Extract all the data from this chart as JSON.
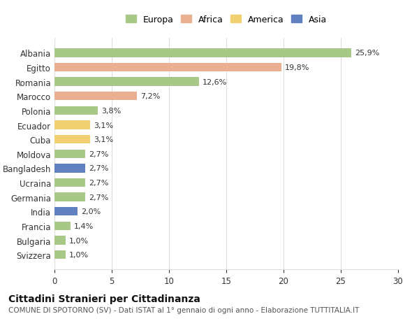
{
  "countries": [
    "Albania",
    "Egitto",
    "Romania",
    "Marocco",
    "Polonia",
    "Ecuador",
    "Cuba",
    "Moldova",
    "Bangladesh",
    "Ucraina",
    "Germania",
    "India",
    "Francia",
    "Bulgaria",
    "Svizzera"
  ],
  "values": [
    25.9,
    19.8,
    12.6,
    7.2,
    3.8,
    3.1,
    3.1,
    2.7,
    2.7,
    2.7,
    2.7,
    2.0,
    1.4,
    1.0,
    1.0
  ],
  "labels": [
    "25,9%",
    "19,8%",
    "12,6%",
    "7,2%",
    "3,8%",
    "3,1%",
    "3,1%",
    "2,7%",
    "2,7%",
    "2,7%",
    "2,7%",
    "2,0%",
    "1,4%",
    "1,0%",
    "1,0%"
  ],
  "continents": [
    "Europa",
    "Africa",
    "Europa",
    "Africa",
    "Europa",
    "America",
    "America",
    "Europa",
    "Asia",
    "Europa",
    "Europa",
    "Asia",
    "Europa",
    "Europa",
    "Europa"
  ],
  "colors": {
    "Europa": "#a8c888",
    "Africa": "#e8b090",
    "America": "#f0d070",
    "Asia": "#6080c0"
  },
  "legend_order": [
    "Europa",
    "Africa",
    "America",
    "Asia"
  ],
  "title": "Cittadini Stranieri per Cittadinanza",
  "subtitle": "COMUNE DI SPOTORNO (SV) - Dati ISTAT al 1° gennaio di ogni anno - Elaborazione TUTTITALIA.IT",
  "xlim": [
    0,
    30
  ],
  "xticks": [
    0,
    5,
    10,
    15,
    20,
    25,
    30
  ],
  "background_color": "#ffffff",
  "grid_color": "#dddddd"
}
